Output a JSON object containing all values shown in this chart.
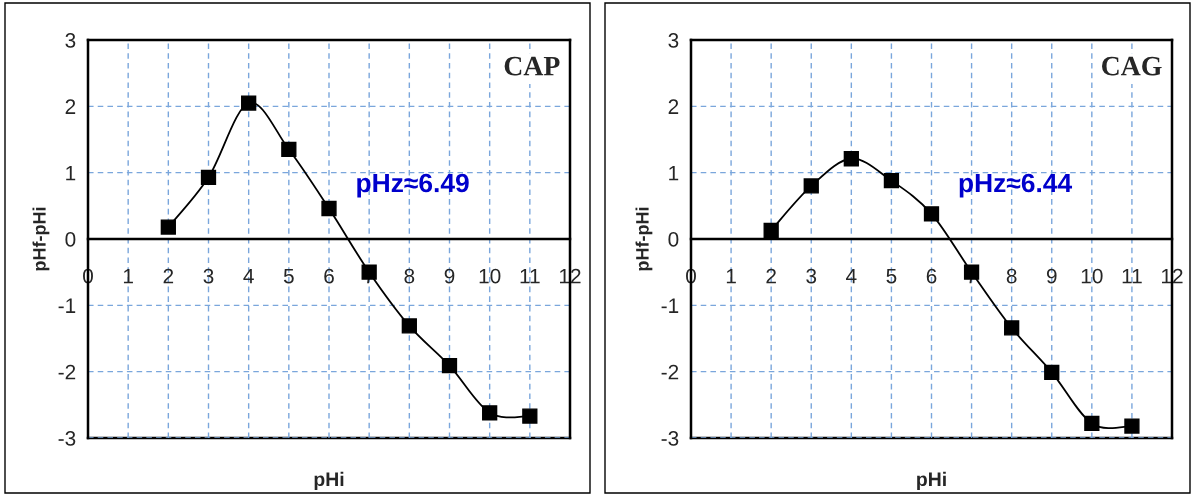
{
  "chart_data": [
    {
      "type": "line",
      "title": "CAP",
      "xlabel": "pHi",
      "ylabel": "pHf-pHi",
      "annotations": [
        "pHz≈6.49"
      ],
      "x": [
        2,
        3,
        4,
        5,
        6,
        7,
        8,
        9,
        10,
        11
      ],
      "series": [
        {
          "color": "#000000",
          "values": [
            0.18,
            0.93,
            2.05,
            1.35,
            0.46,
            -0.5,
            -1.31,
            -1.91,
            -2.62,
            -2.67
          ]
        }
      ],
      "xlim": [
        0,
        12
      ],
      "xticks": [
        0,
        1,
        2,
        3,
        4,
        5,
        6,
        7,
        8,
        9,
        10,
        11,
        12
      ],
      "ylim": [
        -3,
        3
      ],
      "yticks": [
        -3,
        -2,
        -1,
        0,
        1,
        2,
        3
      ],
      "grid": true,
      "marker": "square",
      "line_style": "solid",
      "legend": false
    },
    {
      "type": "line",
      "title": "CAG",
      "xlabel": "pHi",
      "ylabel": "pHf-pHi",
      "annotations": [
        "pHz≈6.44"
      ],
      "x": [
        2,
        3,
        4,
        5,
        6,
        7,
        8,
        9,
        10,
        11
      ],
      "series": [
        {
          "color": "#000000",
          "values": [
            0.13,
            0.8,
            1.21,
            0.88,
            0.38,
            -0.5,
            -1.34,
            -2.01,
            -2.78,
            -2.82
          ]
        }
      ],
      "xlim": [
        0,
        12
      ],
      "xticks": [
        0,
        1,
        2,
        3,
        4,
        5,
        6,
        7,
        8,
        9,
        10,
        11,
        12
      ],
      "ylim": [
        -3,
        3
      ],
      "yticks": [
        -3,
        -2,
        -1,
        0,
        1,
        2,
        3
      ],
      "grid": true,
      "marker": "square",
      "line_style": "solid",
      "legend": false
    }
  ]
}
